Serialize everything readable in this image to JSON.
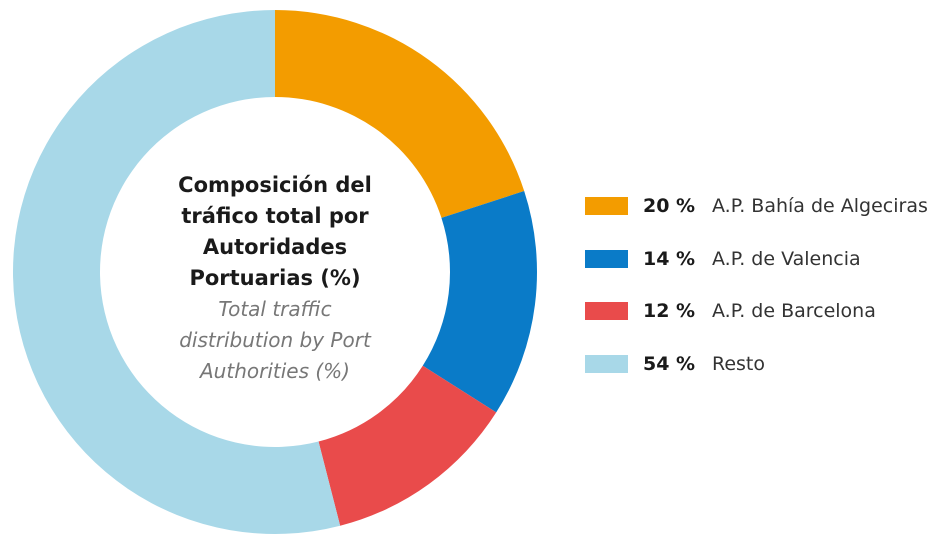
{
  "chart_data": {
    "type": "donut",
    "title": "Composición del tráfico total por Autoridades Portuarias (%)",
    "subtitle": "Total traffic distribution by Port Authorities (%)",
    "categories": [
      "A.P. Bahía de Algeciras",
      "A.P. de Valencia",
      "A.P. de Barcelona",
      "Resto"
    ],
    "values": [
      20,
      14,
      12,
      54
    ],
    "value_labels": [
      "20 %",
      "14 %",
      "12 %",
      "54 %"
    ],
    "colors": [
      "#f39c00",
      "#0a7bc8",
      "#e94b4b",
      "#a8d8e8"
    ]
  }
}
